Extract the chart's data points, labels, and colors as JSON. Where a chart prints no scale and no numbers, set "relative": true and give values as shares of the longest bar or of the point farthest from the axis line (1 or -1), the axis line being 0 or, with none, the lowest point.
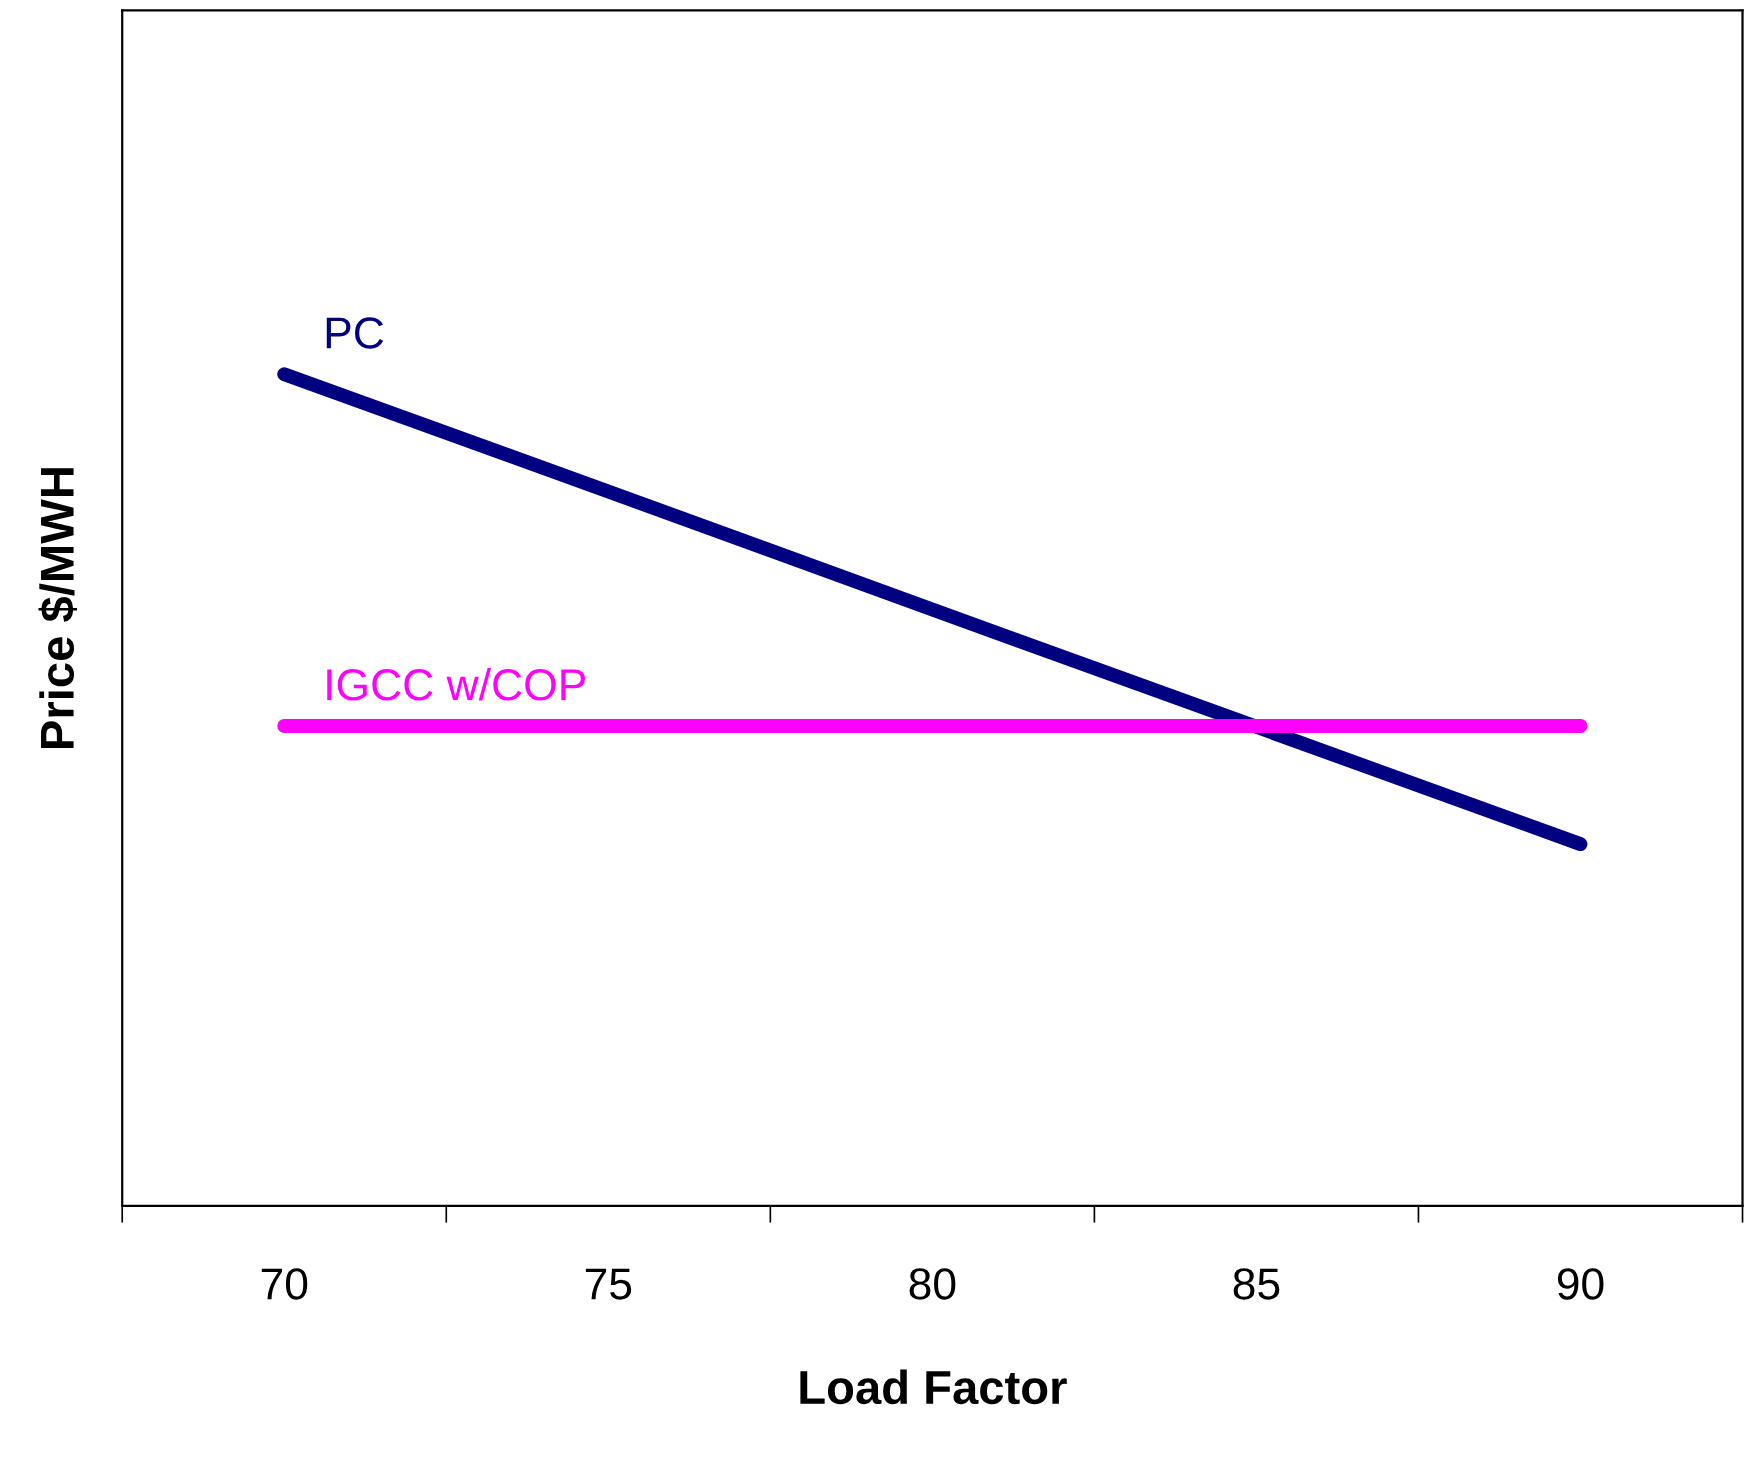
{
  "chart_data": {
    "type": "line",
    "xlabel": "Load Factor",
    "ylabel": "Price $/MWH",
    "relative": true,
    "categories": [
      "70",
      "75",
      "80",
      "85",
      "90"
    ],
    "series": [
      {
        "name": "PC",
        "color": "#000080",
        "values": [
          1,
          0.859,
          0.717,
          0.576,
          0.435
        ]
      },
      {
        "name": "IGCC w/COP",
        "color": "#ff00ff",
        "values": [
          0.577,
          0.577,
          0.577,
          0.577,
          0.577
        ]
      }
    ],
    "grid": false,
    "legend": false,
    "marker": "none",
    "line_style": "solid"
  }
}
